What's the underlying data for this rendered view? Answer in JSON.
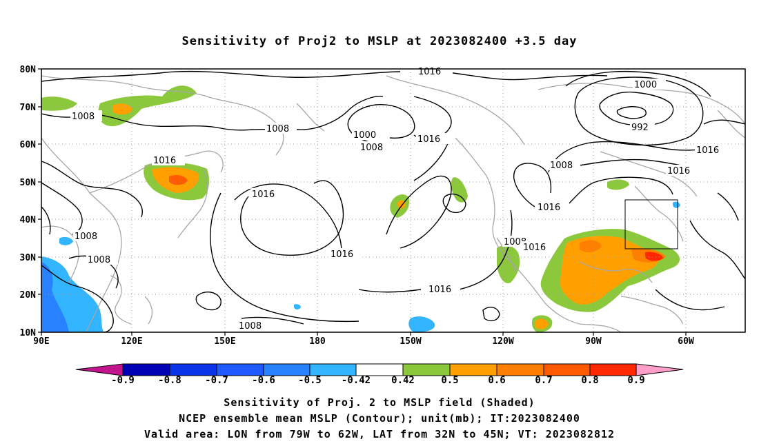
{
  "title": "Sensitivity of Proj2 to MSLP at 2023082400 +3.5 day",
  "map": {
    "lat_labels": [
      "80N",
      "70N",
      "60N",
      "50N",
      "40N",
      "30N",
      "20N",
      "10N"
    ],
    "lon_labels": [
      "90E",
      "120E",
      "150E",
      "180",
      "150W",
      "120W",
      "90W",
      "60W"
    ],
    "contour_labels": [
      "1016",
      "1008",
      "1008",
      "1000",
      "1008",
      "1016",
      "1000",
      "992",
      "1016",
      "1008",
      "1016",
      "1016",
      "1016",
      "1008",
      "1008",
      "1016",
      "1016",
      "1008",
      "1016",
      "1016",
      "1008"
    ]
  },
  "colorbar": {
    "colors": [
      "#c2148c",
      "#0000b4",
      "#0a32e6",
      "#1e5aff",
      "#2882ff",
      "#32b4ff",
      "#00d2ff",
      "#ffffff",
      "#8cc83c",
      "#ffa000",
      "#ff8000",
      "#ff5a00",
      "#ff2800",
      "#ff0000",
      "#ff9ec8"
    ],
    "labels": [
      "-0.9",
      "-0.8",
      "-0.7",
      "-0.6",
      "-0.5",
      "-0.42",
      "0.42",
      "0.5",
      "0.6",
      "0.7",
      "0.8",
      "0.9"
    ]
  },
  "caption": {
    "line1": "Sensitivity of Proj. 2 to MSLP field (Shaded)",
    "line2": "NCEP ensemble mean MSLP (Contour); unit(mb); IT:2023082400",
    "line3": "Valid area: LON from 79W to 62W, LAT from 32N to 45N; VT: 2023082812"
  }
}
